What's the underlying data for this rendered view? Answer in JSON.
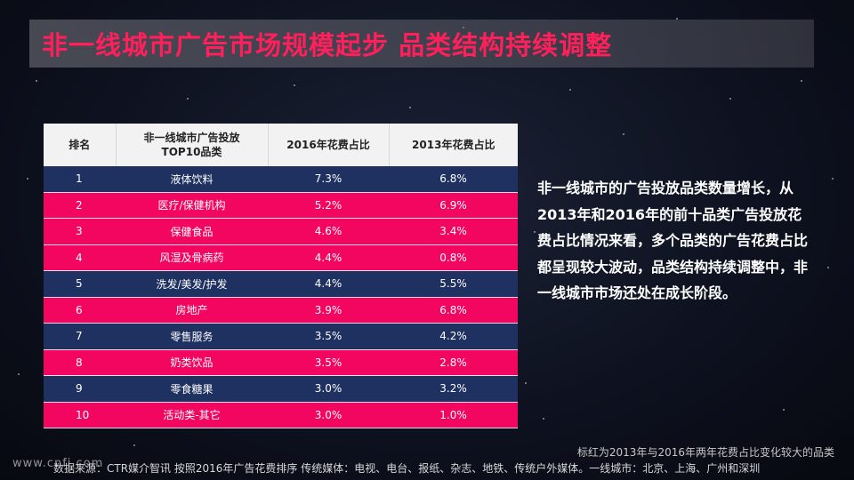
{
  "slide": {
    "title": "非一线城市广告市场规模起步 品类结构持续调整",
    "description": "非一线城市的广告投放品类数量增长，从2013年和2016年的前十品类广告投放花费占比情况来看，多个品类的广告花费占比都呈现较大波动，品类结构持续调整中，非一线城市市场还处在成长阶段。",
    "note": "标红为2013年与2016年两年花费占比变化较大的品类",
    "source": "数据来源：CTR媒介智讯 按照2016年广告花费排序  传统媒体：电视、电台、报纸、杂志、地铁、传统户外媒体。一线城市：北京、上海、广州和深圳",
    "watermark": "www.cnfi.com"
  },
  "table": {
    "headers": {
      "rank": "排名",
      "category": "非一线城市广告投放\nTOP10品类",
      "y2016": "2016年花费占比",
      "y2013": "2013年花费占比"
    },
    "rows": [
      {
        "rank": "1",
        "category": "液体饮料",
        "y2016": "7.3%",
        "y2013": "6.8%",
        "highlight": false
      },
      {
        "rank": "2",
        "category": "医疗/保健机构",
        "y2016": "5.2%",
        "y2013": "6.9%",
        "highlight": true
      },
      {
        "rank": "3",
        "category": "保健食品",
        "y2016": "4.6%",
        "y2013": "3.4%",
        "highlight": true
      },
      {
        "rank": "4",
        "category": "风湿及骨病药",
        "y2016": "4.4%",
        "y2013": "0.8%",
        "highlight": true
      },
      {
        "rank": "5",
        "category": "洗发/美发/护发",
        "y2016": "4.4%",
        "y2013": "5.5%",
        "highlight": false
      },
      {
        "rank": "6",
        "category": "房地产",
        "y2016": "3.9%",
        "y2013": "6.8%",
        "highlight": true
      },
      {
        "rank": "7",
        "category": "零售服务",
        "y2016": "3.5%",
        "y2013": "4.2%",
        "highlight": false
      },
      {
        "rank": "8",
        "category": "奶类饮品",
        "y2016": "3.5%",
        "y2013": "2.8%",
        "highlight": true
      },
      {
        "rank": "9",
        "category": "零食糖果",
        "y2016": "3.0%",
        "y2013": "3.2%",
        "highlight": false
      },
      {
        "rank": "10",
        "category": "活动类-其它",
        "y2016": "3.0%",
        "y2013": "1.0%",
        "highlight": true
      }
    ]
  },
  "colors": {
    "title": "#ff1f5a",
    "row_normal": "#1f3160",
    "row_highlight": "#f2065f",
    "header_bg": "#f2f2f2"
  }
}
